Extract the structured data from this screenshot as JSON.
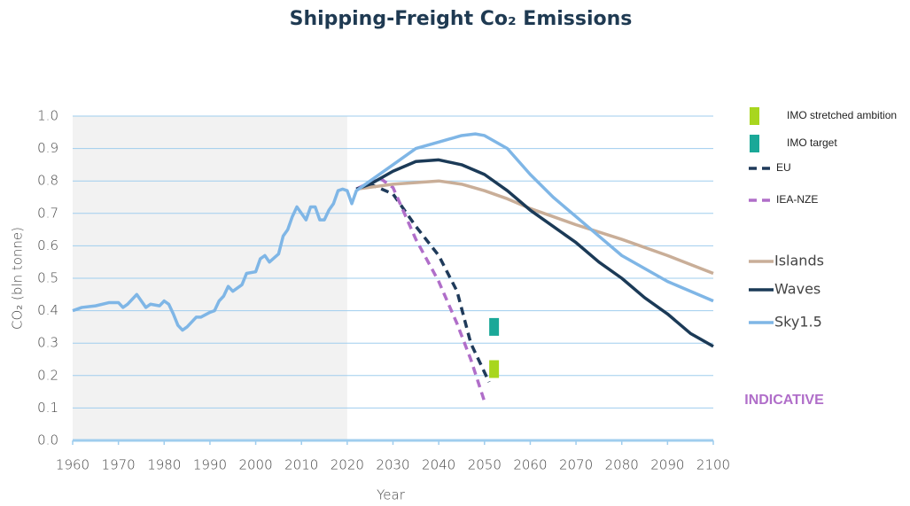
{
  "chart_data": {
    "type": "line",
    "title": "Shipping-Freight Co₂ Emissions",
    "x_label": "Year",
    "y_label": "CO₂ (bln tonne)",
    "annotation": "INDICATIVE",
    "annotation_color": "#b06ec9",
    "shaded_region": [
      1960,
      2020
    ],
    "xlim": [
      1960,
      2100
    ],
    "xticks": [
      1960,
      1970,
      1980,
      1990,
      2000,
      2010,
      2020,
      2030,
      2040,
      2050,
      2060,
      2070,
      2080,
      2090,
      2100
    ],
    "ylim": [
      0,
      1
    ],
    "yticks": [
      {
        "value": 0,
        "label": "0.0"
      },
      0.1,
      0.2,
      0.3,
      0.4,
      0.5,
      0.6,
      0.7,
      0.8,
      0.9,
      {
        "value": 1,
        "label": "1.0"
      }
    ],
    "grid": true,
    "series": [
      {
        "name": "IMO stretched ambition",
        "color": "#a8d61e",
        "style": "marker",
        "x": [
          2052
        ],
        "values": [
          0.22
        ]
      },
      {
        "name": "IMO target",
        "color": "#1aa898",
        "style": "marker",
        "x": [
          2052
        ],
        "values": [
          0.35
        ]
      },
      {
        "name": "EU",
        "color": "#1f3a5a",
        "style": "dashed",
        "x": [
          2022,
          2025,
          2030,
          2035,
          2040,
          2044,
          2047,
          2051
        ],
        "values": [
          0.775,
          0.79,
          0.76,
          0.66,
          0.57,
          0.46,
          0.3,
          0.18
        ]
      },
      {
        "name": "IEA-NZE",
        "color": "#b06ec9",
        "style": "dashed",
        "x": [
          2022,
          2027,
          2030,
          2035,
          2040,
          2044,
          2047,
          2050
        ],
        "values": [
          0.775,
          0.81,
          0.78,
          0.62,
          0.49,
          0.36,
          0.25,
          0.12
        ]
      },
      {
        "name": "Islands",
        "color": "#c9ae98",
        "style": "solid",
        "x": [
          2022,
          2030,
          2040,
          2045,
          2050,
          2055,
          2060,
          2065,
          2070,
          2080,
          2090,
          2100
        ],
        "values": [
          0.775,
          0.79,
          0.8,
          0.79,
          0.77,
          0.745,
          0.715,
          0.69,
          0.665,
          0.62,
          0.57,
          0.515
        ]
      },
      {
        "name": "Waves",
        "color": "#1b3a57",
        "style": "solid",
        "x": [
          2022,
          2025,
          2030,
          2035,
          2040,
          2045,
          2050,
          2055,
          2060,
          2065,
          2070,
          2075,
          2080,
          2085,
          2090,
          2095,
          2100
        ],
        "values": [
          0.775,
          0.79,
          0.83,
          0.86,
          0.865,
          0.85,
          0.82,
          0.77,
          0.71,
          0.66,
          0.61,
          0.55,
          0.5,
          0.44,
          0.39,
          0.33,
          0.29
        ]
      },
      {
        "name": "Sky1.5",
        "color": "#7fb6e6",
        "style": "solid",
        "x": [
          1960,
          1962,
          1965,
          1968,
          1970,
          1971,
          1972,
          1974,
          1976,
          1977,
          1979,
          1980,
          1981,
          1982,
          1983,
          1984,
          1985,
          1987,
          1988,
          1990,
          1991,
          1992,
          1993,
          1994,
          1995,
          1997,
          1998,
          2000,
          2001,
          2002,
          2003,
          2005,
          2006,
          2007,
          2008,
          2009,
          2010,
          2011,
          2012,
          2013,
          2014,
          2015,
          2016,
          2017,
          2018,
          2019,
          2020,
          2021,
          2022,
          2025,
          2030,
          2035,
          2040,
          2045,
          2048,
          2050,
          2055,
          2060,
          2065,
          2070,
          2075,
          2080,
          2085,
          2090,
          2095,
          2100
        ],
        "values": [
          0.4,
          0.41,
          0.415,
          0.425,
          0.425,
          0.41,
          0.42,
          0.45,
          0.41,
          0.42,
          0.415,
          0.43,
          0.42,
          0.39,
          0.355,
          0.34,
          0.35,
          0.38,
          0.38,
          0.395,
          0.4,
          0.43,
          0.445,
          0.475,
          0.46,
          0.48,
          0.515,
          0.52,
          0.56,
          0.57,
          0.55,
          0.575,
          0.63,
          0.65,
          0.69,
          0.72,
          0.7,
          0.68,
          0.72,
          0.72,
          0.68,
          0.68,
          0.71,
          0.73,
          0.77,
          0.775,
          0.77,
          0.73,
          0.77,
          0.8,
          0.85,
          0.9,
          0.92,
          0.94,
          0.945,
          0.94,
          0.9,
          0.82,
          0.75,
          0.69,
          0.63,
          0.57,
          0.53,
          0.49,
          0.46,
          0.43
        ]
      }
    ]
  }
}
